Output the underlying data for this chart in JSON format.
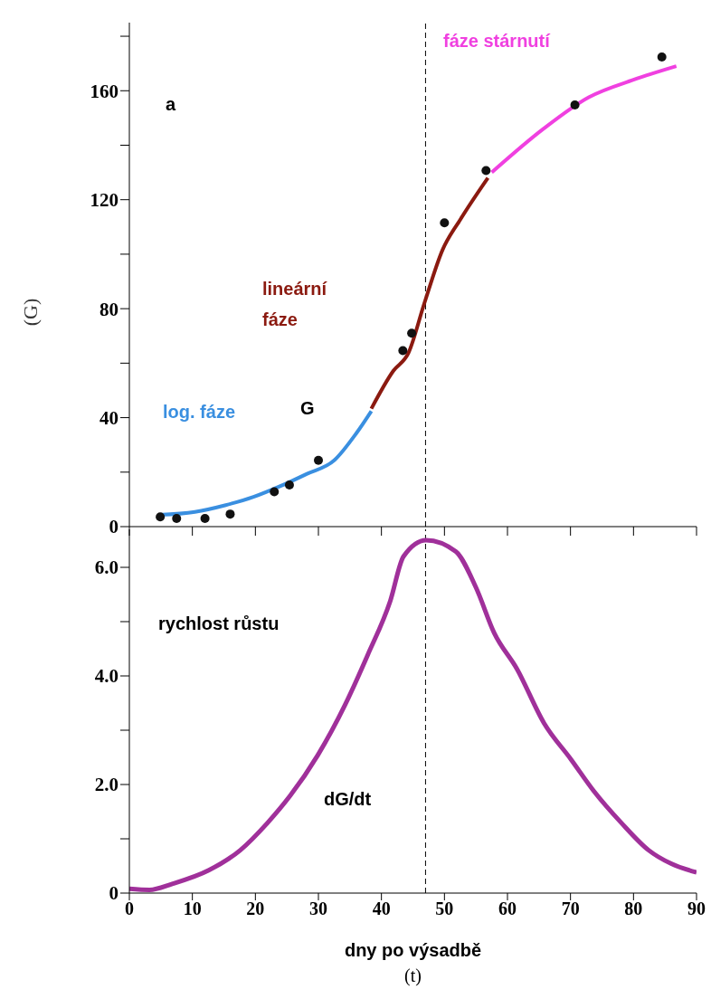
{
  "chart_data": [
    {
      "type": "line",
      "ylabel": "(G)",
      "xlim": [
        0,
        90
      ],
      "xticks": [
        {
          "value": 0,
          "label": null
        },
        {
          "value": 10,
          "label": null
        },
        {
          "value": 20,
          "label": null
        },
        {
          "value": 30,
          "label": null
        },
        {
          "value": 40,
          "label": null
        },
        {
          "value": 50,
          "label": null
        },
        {
          "value": 60,
          "label": null
        },
        {
          "value": 70,
          "label": null
        },
        {
          "value": 80,
          "label": null
        },
        {
          "value": 90,
          "label": null
        }
      ],
      "ylim": [
        0,
        185
      ],
      "yticks": [
        0,
        {
          "value": 20,
          "label": null
        },
        40,
        {
          "value": 60,
          "label": null
        },
        80,
        {
          "value": 100,
          "label": null
        },
        120,
        {
          "value": 140,
          "label": null
        },
        160,
        {
          "value": 180,
          "label": null
        }
      ],
      "tick_labels": "y",
      "annotations": [
        "a",
        "G"
      ],
      "ref_lines": [
        {
          "axis": "x",
          "value": 47,
          "label": null,
          "color": "#000000",
          "line_style": "dashed"
        }
      ],
      "series": [
        {
          "name": "log. fáze",
          "color": "#3a8fe0",
          "x": [
            4.7,
            10.4,
            15.3,
            19.7,
            23.9,
            28.2,
            32.5,
            36,
            38.4
          ],
          "values": [
            4.3,
            5.4,
            7.9,
            10.9,
            14.8,
            19.4,
            24.3,
            34.2,
            42.4
          ]
        },
        {
          "name": "lineární fáze",
          "color": "#8b1a10",
          "x": [
            38.4,
            41.9,
            44.3,
            46.8,
            49.7,
            52.6,
            56.9
          ],
          "values": [
            43.3,
            57.2,
            63.8,
            81.9,
            101.6,
            113,
            128
          ]
        },
        {
          "name": "fáze stárnutí",
          "color": "#f040e0",
          "x": [
            57.5,
            65.7,
            72.9,
            80,
            86.8
          ],
          "values": [
            130,
            146,
            157.6,
            164,
            169
          ]
        },
        {
          "type": "scatter",
          "color": "#111111",
          "marker": "circle",
          "x": [
            4.9,
            7.5,
            12,
            16,
            23,
            25.4,
            30,
            43.4,
            44.8,
            50,
            56.6,
            70.7,
            84.5
          ],
          "values": [
            3.6,
            3,
            3,
            4.6,
            12.8,
            15.3,
            24.3,
            64.6,
            71,
            111.5,
            130.7,
            154.8,
            172.4
          ]
        }
      ]
    },
    {
      "type": "line",
      "xlabel": "dny po výsadbě\n(t)",
      "xlim": [
        0,
        90
      ],
      "xticks": [
        0,
        10,
        20,
        30,
        40,
        50,
        60,
        70,
        80,
        90
      ],
      "ylim": [
        0,
        6.7
      ],
      "yticks": [
        0,
        {
          "value": 1,
          "label": null
        },
        {
          "value": 2,
          "label": "2.0"
        },
        {
          "value": 3,
          "label": null
        },
        {
          "value": 4,
          "label": "4.0"
        },
        {
          "value": 5,
          "label": null
        },
        {
          "value": 6,
          "label": "6.0"
        }
      ],
      "annotations": [
        "rychlost růstu",
        "dG/dt"
      ],
      "ref_lines": [
        {
          "axis": "x",
          "value": 47,
          "label": null,
          "color": "#000000",
          "line_style": "dashed"
        }
      ],
      "series": [
        {
          "color": "#a0309a",
          "x": [
            0,
            3.2,
            6.8,
            12.6,
            17.6,
            21.9,
            25.5,
            29.9,
            34.2,
            37.8,
            41.4,
            43.5,
            47.1,
            51.8,
            55,
            57.9,
            61.5,
            65.8,
            70.1,
            73.7,
            78.1,
            82.4,
            86,
            90
          ],
          "values": [
            0.08,
            0.06,
            0.17,
            0.42,
            0.79,
            1.29,
            1.79,
            2.54,
            3.46,
            4.38,
            5.38,
            6.2,
            6.5,
            6.29,
            5.63,
            4.79,
            4.13,
            3.13,
            2.46,
            1.88,
            1.29,
            0.79,
            0.54,
            0.38
          ]
        }
      ]
    }
  ]
}
